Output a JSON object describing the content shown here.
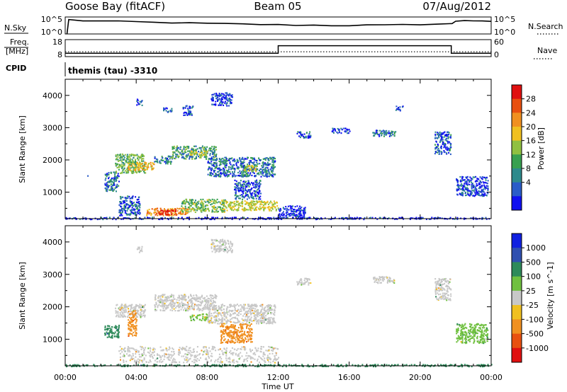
{
  "header": {
    "station": "Goose Bay (fitACF)",
    "beam": "Beam 05",
    "date": "07/Aug/2012"
  },
  "side_labels": {
    "nsky": "N.Sky",
    "freq_line1": "Freq.",
    "freq_line2": "[MHz]",
    "cpid": "CPID",
    "nsearch": "N.Search",
    "nave": "Nave",
    "nsky_top": "10^5",
    "nsky_bottom": "10^0",
    "nsearch_top": "10^5",
    "nsearch_bottom": "10^0",
    "freq_top": "18",
    "freq_bottom": "8",
    "nave_top": "60",
    "nave_bottom": "0"
  },
  "cpid_text": "themis (tau) -3310",
  "chart_data": [
    {
      "type": "line",
      "panel": "noise",
      "series": [
        {
          "name": "N.Sky",
          "x_hours": [
            0.1,
            0.2,
            1,
            2,
            3,
            4,
            5,
            6,
            7,
            8,
            9,
            10,
            11,
            12,
            13,
            14,
            15,
            16,
            17,
            18,
            19,
            20,
            21,
            21.8,
            22,
            22.5,
            23,
            23.5,
            24
          ],
          "values_log10": [
            0,
            4.2,
            3.9,
            3.8,
            3.7,
            3.6,
            3.4,
            3.3,
            3.2,
            3.1,
            3.0,
            2.9,
            2.8,
            2.7,
            2.6,
            2.6,
            2.5,
            2.5,
            2.6,
            2.6,
            2.7,
            2.8,
            2.9,
            3.0,
            3.8,
            4.0,
            3.9,
            3.7,
            3.6
          ]
        }
      ],
      "ylim_log10": [
        0,
        5
      ]
    },
    {
      "type": "line",
      "panel": "frequency",
      "series": [
        {
          "name": "Freq.",
          "x_hours": [
            0,
            12,
            12,
            21.75,
            21.75,
            24
          ],
          "values": [
            10,
            10,
            14.4,
            14.4,
            10,
            10
          ]
        },
        {
          "name": "Nave",
          "x_hours": [
            0,
            24
          ],
          "values": [
            17,
            17
          ]
        }
      ],
      "ylim_freq": [
        8,
        18
      ],
      "ylim_nave": [
        0,
        60
      ]
    },
    {
      "type": "heatmap",
      "panel": "power",
      "xlabel": "",
      "ylabel": "Slant Range [km]",
      "xlim_hours": [
        0,
        24
      ],
      "ylim": [
        180,
        4500
      ],
      "yticks": [
        1000,
        2000,
        3000,
        4000
      ],
      "colorbar_title": "Power [dB]",
      "colorbar_ticks": [
        "28",
        "24",
        "20",
        "16",
        "12",
        "8",
        "4"
      ],
      "colors": [
        "#1010f0",
        "#2a5cc8",
        "#2e8a8c",
        "#38a050",
        "#90c040",
        "#f0c020",
        "#f09020",
        "#e85010",
        "#e01010"
      ],
      "regions": [
        {
          "t0": 1.2,
          "t1": 1.3,
          "r0": 1480,
          "r1": 1560,
          "v": 3
        },
        {
          "t0": 2.2,
          "t1": 3.0,
          "r0": 1050,
          "r1": 1650,
          "v": 6
        },
        {
          "t0": 2.8,
          "t1": 4.5,
          "r0": 1600,
          "r1": 2200,
          "v": 10
        },
        {
          "t0": 3.5,
          "t1": 5.0,
          "r0": 1700,
          "r1": 1950,
          "v": 17
        },
        {
          "t0": 5.0,
          "t1": 6.0,
          "r0": 1900,
          "r1": 2150,
          "v": 7
        },
        {
          "t0": 6.0,
          "t1": 8.5,
          "r0": 2050,
          "r1": 2450,
          "v": 8
        },
        {
          "t0": 7.0,
          "t1": 8.0,
          "r0": 2150,
          "r1": 2300,
          "v": 14
        },
        {
          "t0": 8.0,
          "t1": 11.8,
          "r0": 1500,
          "r1": 2100,
          "v": 6
        },
        {
          "t0": 10.0,
          "t1": 10.8,
          "r0": 1650,
          "r1": 1850,
          "v": 13
        },
        {
          "t0": 4.0,
          "t1": 4.3,
          "r0": 3700,
          "r1": 3900,
          "v": 4
        },
        {
          "t0": 5.5,
          "t1": 6.0,
          "r0": 3500,
          "r1": 3650,
          "v": 4
        },
        {
          "t0": 6.6,
          "t1": 7.2,
          "r0": 3400,
          "r1": 3700,
          "v": 4
        },
        {
          "t0": 8.2,
          "t1": 9.4,
          "r0": 3700,
          "r1": 4100,
          "v": 4
        },
        {
          "t0": 3.0,
          "t1": 4.2,
          "r0": 300,
          "r1": 900,
          "v": 5
        },
        {
          "t0": 4.5,
          "t1": 7.0,
          "r0": 300,
          "r1": 520,
          "v": 20
        },
        {
          "t0": 5.2,
          "t1": 6.2,
          "r0": 320,
          "r1": 480,
          "v": 27
        },
        {
          "t0": 6.5,
          "t1": 9.0,
          "r0": 400,
          "r1": 800,
          "v": 11
        },
        {
          "t0": 9.0,
          "t1": 12.0,
          "r0": 450,
          "r1": 750,
          "v": 14
        },
        {
          "t0": 9.5,
          "t1": 11.0,
          "r0": 800,
          "r1": 1400,
          "v": 5
        },
        {
          "t0": 12.0,
          "t1": 13.5,
          "r0": 220,
          "r1": 600,
          "v": 3
        },
        {
          "t0": 13.0,
          "t1": 13.8,
          "r0": 2700,
          "r1": 2900,
          "v": 5
        },
        {
          "t0": 15.0,
          "t1": 16.0,
          "r0": 2850,
          "r1": 3000,
          "v": 4
        },
        {
          "t0": 17.3,
          "t1": 18.6,
          "r0": 2750,
          "r1": 2950,
          "v": 6
        },
        {
          "t0": 18.6,
          "t1": 19.0,
          "r0": 3550,
          "r1": 3700,
          "v": 4
        },
        {
          "t0": 20.8,
          "t1": 21.7,
          "r0": 2200,
          "r1": 2900,
          "v": 5
        },
        {
          "t0": 22.0,
          "t1": 23.8,
          "r0": 900,
          "r1": 1500,
          "v": 4
        },
        {
          "t0": 0.0,
          "t1": 24.0,
          "r0": 180,
          "r1": 240,
          "v": 3
        }
      ]
    },
    {
      "type": "heatmap",
      "panel": "velocity",
      "xlabel": "Time UT",
      "ylabel": "Slant Range [km]",
      "xlim_hours": [
        0,
        24
      ],
      "xticks": [
        "00:00",
        "04:00",
        "08:00",
        "12:00",
        "16:00",
        "20:00",
        "00:00"
      ],
      "ylim": [
        180,
        4500
      ],
      "yticks": [
        1000,
        2000,
        3000,
        4000
      ],
      "colorbar_title": "Velocity [m s^-1]",
      "colorbar_ticks": [
        "1000",
        "500",
        "100",
        "25",
        "-25",
        "-100",
        "-500",
        "-1000"
      ],
      "colors": [
        "#1020e0",
        "#3050b0",
        "#2e8a5a",
        "#70c040",
        "#c8c8c8",
        "#f0c020",
        "#f09020",
        "#e85010",
        "#e01010"
      ],
      "regions": [
        {
          "t0": 2.2,
          "t1": 3.0,
          "r0": 1050,
          "r1": 1450,
          "v": 250
        },
        {
          "t0": 2.8,
          "t1": 4.5,
          "r0": 1700,
          "r1": 2100,
          "v": 0
        },
        {
          "t0": 3.5,
          "t1": 4.0,
          "r0": 1100,
          "r1": 1900,
          "v": -300
        },
        {
          "t0": 5.0,
          "t1": 8.5,
          "r0": 1900,
          "r1": 2400,
          "v": 0
        },
        {
          "t0": 7.0,
          "t1": 8.0,
          "r0": 1600,
          "r1": 1800,
          "v": 60
        },
        {
          "t0": 8.0,
          "t1": 11.8,
          "r0": 1500,
          "r1": 2100,
          "v": 0
        },
        {
          "t0": 8.7,
          "t1": 10.5,
          "r0": 900,
          "r1": 1500,
          "v": -300
        },
        {
          "t0": 4.0,
          "t1": 4.3,
          "r0": 3700,
          "r1": 3900,
          "v": 0
        },
        {
          "t0": 8.2,
          "t1": 9.4,
          "r0": 3700,
          "r1": 4100,
          "v": 0
        },
        {
          "t0": 3.0,
          "t1": 12.0,
          "r0": 300,
          "r1": 800,
          "v": 0
        },
        {
          "t0": 13.0,
          "t1": 13.8,
          "r0": 2700,
          "r1": 2900,
          "v": 0
        },
        {
          "t0": 17.3,
          "t1": 18.6,
          "r0": 2750,
          "r1": 2950,
          "v": 0
        },
        {
          "t0": 20.8,
          "t1": 21.7,
          "r0": 2200,
          "r1": 2900,
          "v": 0
        },
        {
          "t0": 22.0,
          "t1": 23.8,
          "r0": 900,
          "r1": 1500,
          "v": 60
        },
        {
          "t0": 0.0,
          "t1": 24.0,
          "r0": 180,
          "r1": 240,
          "v": 200
        }
      ]
    }
  ]
}
